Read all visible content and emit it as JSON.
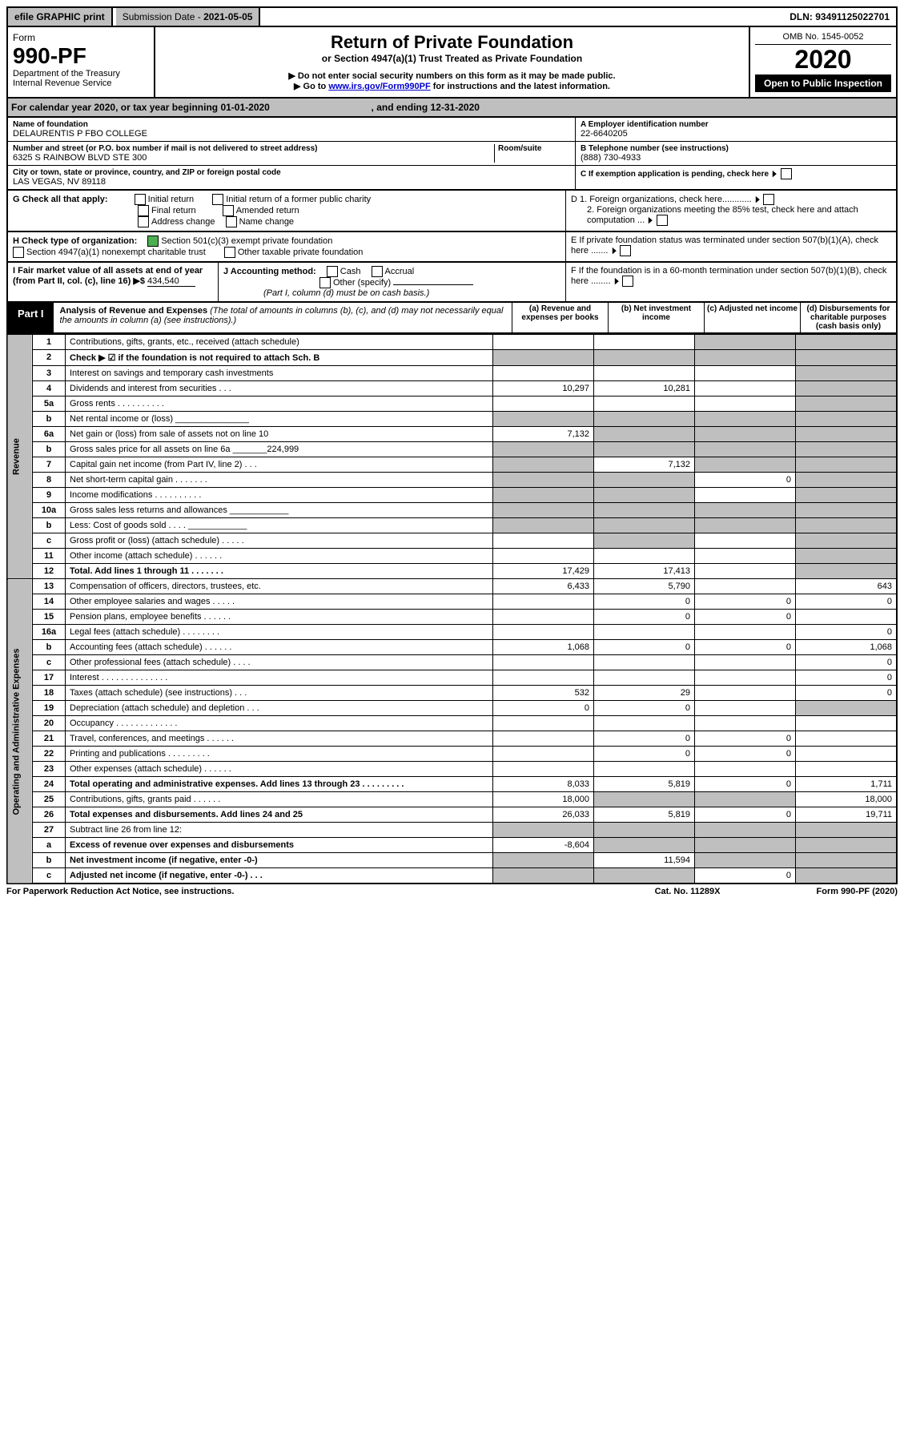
{
  "topbar": {
    "efile": "efile GRAPHIC print",
    "sub_label": "Submission Date - ",
    "sub_date": "2021-05-05",
    "dln": "DLN: 93491125022701"
  },
  "header": {
    "form_word": "Form",
    "form_no": "990-PF",
    "dept": "Department of the Treasury",
    "irs": "Internal Revenue Service",
    "title": "Return of Private Foundation",
    "subtitle": "or Section 4947(a)(1) Trust Treated as Private Foundation",
    "note1": "▶ Do not enter social security numbers on this form as it may be made public.",
    "note2_a": "▶ Go to ",
    "note2_link": "www.irs.gov/Form990PF",
    "note2_b": " for instructions and the latest information.",
    "omb": "OMB No. 1545-0052",
    "year": "2020",
    "open": "Open to Public Inspection"
  },
  "cal": {
    "a": "For calendar year 2020, or tax year beginning ",
    "start": "01-01-2020",
    "b": ", and ending ",
    "end": "12-31-2020"
  },
  "id": {
    "name_label": "Name of foundation",
    "name": "DELAURENTIS P FBO COLLEGE",
    "addr_label": "Number and street (or P.O. box number if mail is not delivered to street address)",
    "room_label": "Room/suite",
    "addr": "6325 S RAINBOW BLVD STE 300",
    "city_label": "City or town, state or province, country, and ZIP or foreign postal code",
    "city": "LAS VEGAS, NV  89118",
    "a_label": "A Employer identification number",
    "ein": "22-6640205",
    "b_label": "B Telephone number (see instructions)",
    "phone": "(888) 730-4933",
    "c_label": "C If exemption application is pending, check here",
    "d1": "D 1. Foreign organizations, check here............",
    "d2": "2. Foreign organizations meeting the 85% test, check here and attach computation ...",
    "e": "E  If private foundation status was terminated under section 507(b)(1)(A), check here .......",
    "f": "F  If the foundation is in a 60-month termination under section 507(b)(1)(B), check here ........"
  },
  "g": {
    "label": "G Check all that apply:",
    "opts": [
      "Initial return",
      "Initial return of a former public charity",
      "Final return",
      "Amended return",
      "Address change",
      "Name change"
    ]
  },
  "h": {
    "label": "H Check type of organization:",
    "o1": "Section 501(c)(3) exempt private foundation",
    "o2": "Section 4947(a)(1) nonexempt charitable trust",
    "o3": "Other taxable private foundation"
  },
  "i": {
    "label": "I Fair market value of all assets at end of year (from Part II, col. (c), line 16) ▶$",
    "val": "434,540"
  },
  "j": {
    "label": "J Accounting method:",
    "cash": "Cash",
    "accrual": "Accrual",
    "other": "Other (specify)",
    "note": "(Part I, column (d) must be on cash basis.)"
  },
  "part1": {
    "tab": "Part I",
    "title": "Analysis of Revenue and Expenses",
    "note": "(The total of amounts in columns (b), (c), and (d) may not necessarily equal the amounts in column (a) (see instructions).)",
    "cols": {
      "a": "(a)  Revenue and expenses per books",
      "b": "(b)  Net investment income",
      "c": "(c)  Adjusted net income",
      "d": "(d)  Disbursements for charitable purposes (cash basis only)"
    },
    "rev_label": "Revenue",
    "exp_label": "Operating and Administrative Expenses"
  },
  "lines": [
    {
      "n": "1",
      "t": "Contributions, gifts, grants, etc., received (attach schedule)",
      "a": "",
      "b": "",
      "c": "s",
      "d": "s"
    },
    {
      "n": "2",
      "t": "Check ▶ ☑ if the foundation is not required to attach Sch. B",
      "a": "s",
      "b": "s",
      "c": "s",
      "d": "s",
      "bold_not": true
    },
    {
      "n": "3",
      "t": "Interest on savings and temporary cash investments",
      "a": "",
      "b": "",
      "c": "",
      "d": "s"
    },
    {
      "n": "4",
      "t": "Dividends and interest from securities    .   .   .",
      "a": "10,297",
      "b": "10,281",
      "c": "",
      "d": "s"
    },
    {
      "n": "5a",
      "t": "Gross rents      .   .   .   .   .   .   .   .   .   .",
      "a": "",
      "b": "",
      "c": "",
      "d": "s"
    },
    {
      "n": "b",
      "t": "Net rental income or (loss)       _______________",
      "a": "s",
      "b": "s",
      "c": "s",
      "d": "s"
    },
    {
      "n": "6a",
      "t": "Net gain or (loss) from sale of assets not on line 10",
      "a": "7,132",
      "b": "s",
      "c": "s",
      "d": "s"
    },
    {
      "n": "b",
      "t": "Gross sales price for all assets on line 6a  _______224,999",
      "a": "s",
      "b": "s",
      "c": "s",
      "d": "s"
    },
    {
      "n": "7",
      "t": "Capital gain net income (from Part IV, line 2)    .   .   .",
      "a": "s",
      "b": "7,132",
      "c": "s",
      "d": "s"
    },
    {
      "n": "8",
      "t": "Net short-term capital gain    .   .   .   .   .   .   .",
      "a": "s",
      "b": "s",
      "c": "0",
      "d": "s"
    },
    {
      "n": "9",
      "t": "Income modifications  .   .   .   .   .   .   .   .   .   .",
      "a": "s",
      "b": "s",
      "c": "",
      "d": "s"
    },
    {
      "n": "10a",
      "t": "Gross sales less returns and allowances  ____________",
      "a": "s",
      "b": "s",
      "c": "s",
      "d": "s"
    },
    {
      "n": "b",
      "t": "Less: Cost of goods sold     .   .   .   .  ____________",
      "a": "s",
      "b": "s",
      "c": "s",
      "d": "s"
    },
    {
      "n": "c",
      "t": "Gross profit or (loss) (attach schedule)    .   .   .   .   .",
      "a": "",
      "b": "s",
      "c": "",
      "d": "s"
    },
    {
      "n": "11",
      "t": "Other income (attach schedule)    .   .   .   .   .   .",
      "a": "",
      "b": "",
      "c": "",
      "d": "s"
    },
    {
      "n": "12",
      "t": "Total. Add lines 1 through 11    .   .   .   .   .   .   .",
      "a": "17,429",
      "b": "17,413",
      "c": "",
      "d": "s",
      "bold": true
    },
    {
      "n": "13",
      "t": "Compensation of officers, directors, trustees, etc.",
      "a": "6,433",
      "b": "5,790",
      "c": "",
      "d": "643"
    },
    {
      "n": "14",
      "t": "Other employee salaries and wages    .   .   .   .   .",
      "a": "",
      "b": "0",
      "c": "0",
      "d": "0"
    },
    {
      "n": "15",
      "t": "Pension plans, employee benefits   .   .   .   .   .   .",
      "a": "",
      "b": "0",
      "c": "0",
      "d": ""
    },
    {
      "n": "16a",
      "t": "Legal fees (attach schedule)  .   .   .   .   .   .   .   .",
      "a": "",
      "b": "",
      "c": "",
      "d": "0"
    },
    {
      "n": "b",
      "t": "Accounting fees (attach schedule)  .   .   .   .   .   .",
      "a": "1,068",
      "b": "0",
      "c": "0",
      "d": "1,068"
    },
    {
      "n": "c",
      "t": "Other professional fees (attach schedule)    .   .   .   .",
      "a": "",
      "b": "",
      "c": "",
      "d": "0"
    },
    {
      "n": "17",
      "t": "Interest   .   .   .   .   .   .   .   .   .   .   .   .   .   .",
      "a": "",
      "b": "",
      "c": "",
      "d": "0"
    },
    {
      "n": "18",
      "t": "Taxes (attach schedule) (see instructions)     .   .   .",
      "a": "532",
      "b": "29",
      "c": "",
      "d": "0"
    },
    {
      "n": "19",
      "t": "Depreciation (attach schedule) and depletion    .   .   .",
      "a": "0",
      "b": "0",
      "c": "",
      "d": "s"
    },
    {
      "n": "20",
      "t": "Occupancy  .   .   .   .   .   .   .   .   .   .   .   .   .",
      "a": "",
      "b": "",
      "c": "",
      "d": ""
    },
    {
      "n": "21",
      "t": "Travel, conferences, and meetings  .   .   .   .   .   .",
      "a": "",
      "b": "0",
      "c": "0",
      "d": ""
    },
    {
      "n": "22",
      "t": "Printing and publications  .   .   .   .   .   .   .   .   .",
      "a": "",
      "b": "0",
      "c": "0",
      "d": ""
    },
    {
      "n": "23",
      "t": "Other expenses (attach schedule)   .   .   .   .   .   .",
      "a": "",
      "b": "",
      "c": "",
      "d": ""
    },
    {
      "n": "24",
      "t": "Total operating and administrative expenses. Add lines 13 through 23   .   .   .   .   .   .   .   .   .",
      "a": "8,033",
      "b": "5,819",
      "c": "0",
      "d": "1,711",
      "bold": true
    },
    {
      "n": "25",
      "t": "Contributions, gifts, grants paid     .   .   .   .   .   .",
      "a": "18,000",
      "b": "s",
      "c": "s",
      "d": "18,000"
    },
    {
      "n": "26",
      "t": "Total expenses and disbursements. Add lines 24 and 25",
      "a": "26,033",
      "b": "5,819",
      "c": "0",
      "d": "19,711",
      "bold": true
    },
    {
      "n": "27",
      "t": "Subtract line 26 from line 12:",
      "a": "s",
      "b": "s",
      "c": "s",
      "d": "s"
    },
    {
      "n": "a",
      "t": "Excess of revenue over expenses and disbursements",
      "a": "-8,604",
      "b": "s",
      "c": "s",
      "d": "s",
      "bold": true
    },
    {
      "n": "b",
      "t": "Net investment income (if negative, enter -0-)",
      "a": "s",
      "b": "11,594",
      "c": "s",
      "d": "s",
      "bold": true
    },
    {
      "n": "c",
      "t": "Adjusted net income (if negative, enter -0-)   .   .   .",
      "a": "s",
      "b": "s",
      "c": "0",
      "d": "s",
      "bold": true
    }
  ],
  "foot": {
    "a": "For Paperwork Reduction Act Notice, see instructions.",
    "b": "Cat. No. 11289X",
    "c": "Form 990-PF (2020)"
  }
}
